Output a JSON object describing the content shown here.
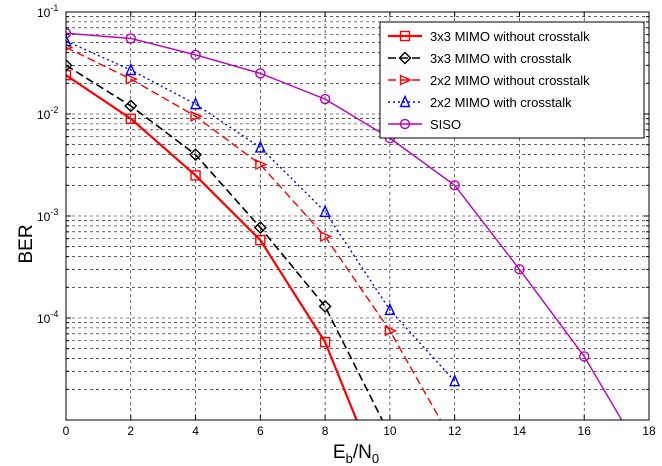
{
  "chart_data": {
    "type": "line",
    "yscale": "log",
    "xlim": [
      0,
      18
    ],
    "ylim": [
      1e-05,
      0.1
    ],
    "grid": true,
    "legend_position": "top-right",
    "xlabel_main": "E",
    "xlabel_sub1": "b",
    "xlabel_mid": "/N",
    "xlabel_sub2": "0",
    "ylabel": "BER",
    "x_ticks": [
      {
        "value": 0,
        "label": "0"
      },
      {
        "value": 2,
        "label": "2"
      },
      {
        "value": 4,
        "label": "4"
      },
      {
        "value": 6,
        "label": "6"
      },
      {
        "value": 8,
        "label": "8"
      },
      {
        "value": 10,
        "label": "10"
      },
      {
        "value": 12,
        "label": "12"
      },
      {
        "value": 14,
        "label": "14"
      },
      {
        "value": 16,
        "label": "16"
      },
      {
        "value": 18,
        "label": "18"
      }
    ],
    "y_ticks": [
      {
        "value": 0.1,
        "base": "10",
        "exp": "-1"
      },
      {
        "value": 0.01,
        "base": "10",
        "exp": "-2"
      },
      {
        "value": 0.001,
        "base": "10",
        "exp": "-3"
      },
      {
        "value": 0.0001,
        "base": "10",
        "exp": "-4"
      }
    ],
    "series": [
      {
        "name": "3x3 MIMO without crosstalk",
        "color": "#ff0000",
        "dash": "solid",
        "marker": "square",
        "width": 2.2,
        "x": [
          0,
          2,
          4,
          6,
          8,
          9
        ],
        "y": [
          0.024,
          0.009,
          0.0025,
          0.00058,
          5.8e-05,
          9.5e-06
        ]
      },
      {
        "name": "3x3 MIMO with crosstalk",
        "color": "#000000",
        "dash": "dashed",
        "marker": "diamond",
        "width": 1.6,
        "x": [
          0,
          2,
          4,
          6,
          8,
          9.8
        ],
        "y": [
          0.03,
          0.012,
          0.004,
          0.00077,
          0.00013,
          9.5e-06
        ]
      },
      {
        "name": "2x2 MIMO without crosstalk",
        "color": "#ff0000",
        "dash": "dashed",
        "marker": "triangle-right",
        "width": 1.4,
        "x": [
          0,
          2,
          4,
          6,
          8,
          10,
          11.6
        ],
        "y": [
          0.045,
          0.022,
          0.0095,
          0.0032,
          0.00063,
          7.5e-05,
          9.5e-06
        ]
      },
      {
        "name": "2x2 MIMO with crosstalk",
        "color": "#0000ff",
        "dash": "dotted",
        "marker": "triangle-up",
        "width": 1.4,
        "x": [
          0,
          2,
          4,
          6,
          8,
          10,
          12
        ],
        "y": [
          0.052,
          0.027,
          0.0125,
          0.0047,
          0.0011,
          0.00012,
          2.4e-05
        ]
      },
      {
        "name": "SISO",
        "color": "#bb00bb",
        "dash": "solid",
        "marker": "circle",
        "width": 1.4,
        "x": [
          0,
          2,
          4,
          6,
          8,
          10,
          12,
          14,
          16,
          17.2
        ],
        "y": [
          0.062,
          0.055,
          0.038,
          0.025,
          0.014,
          0.0058,
          0.002,
          0.0003,
          4.2e-05,
          9.5e-06
        ]
      }
    ]
  }
}
